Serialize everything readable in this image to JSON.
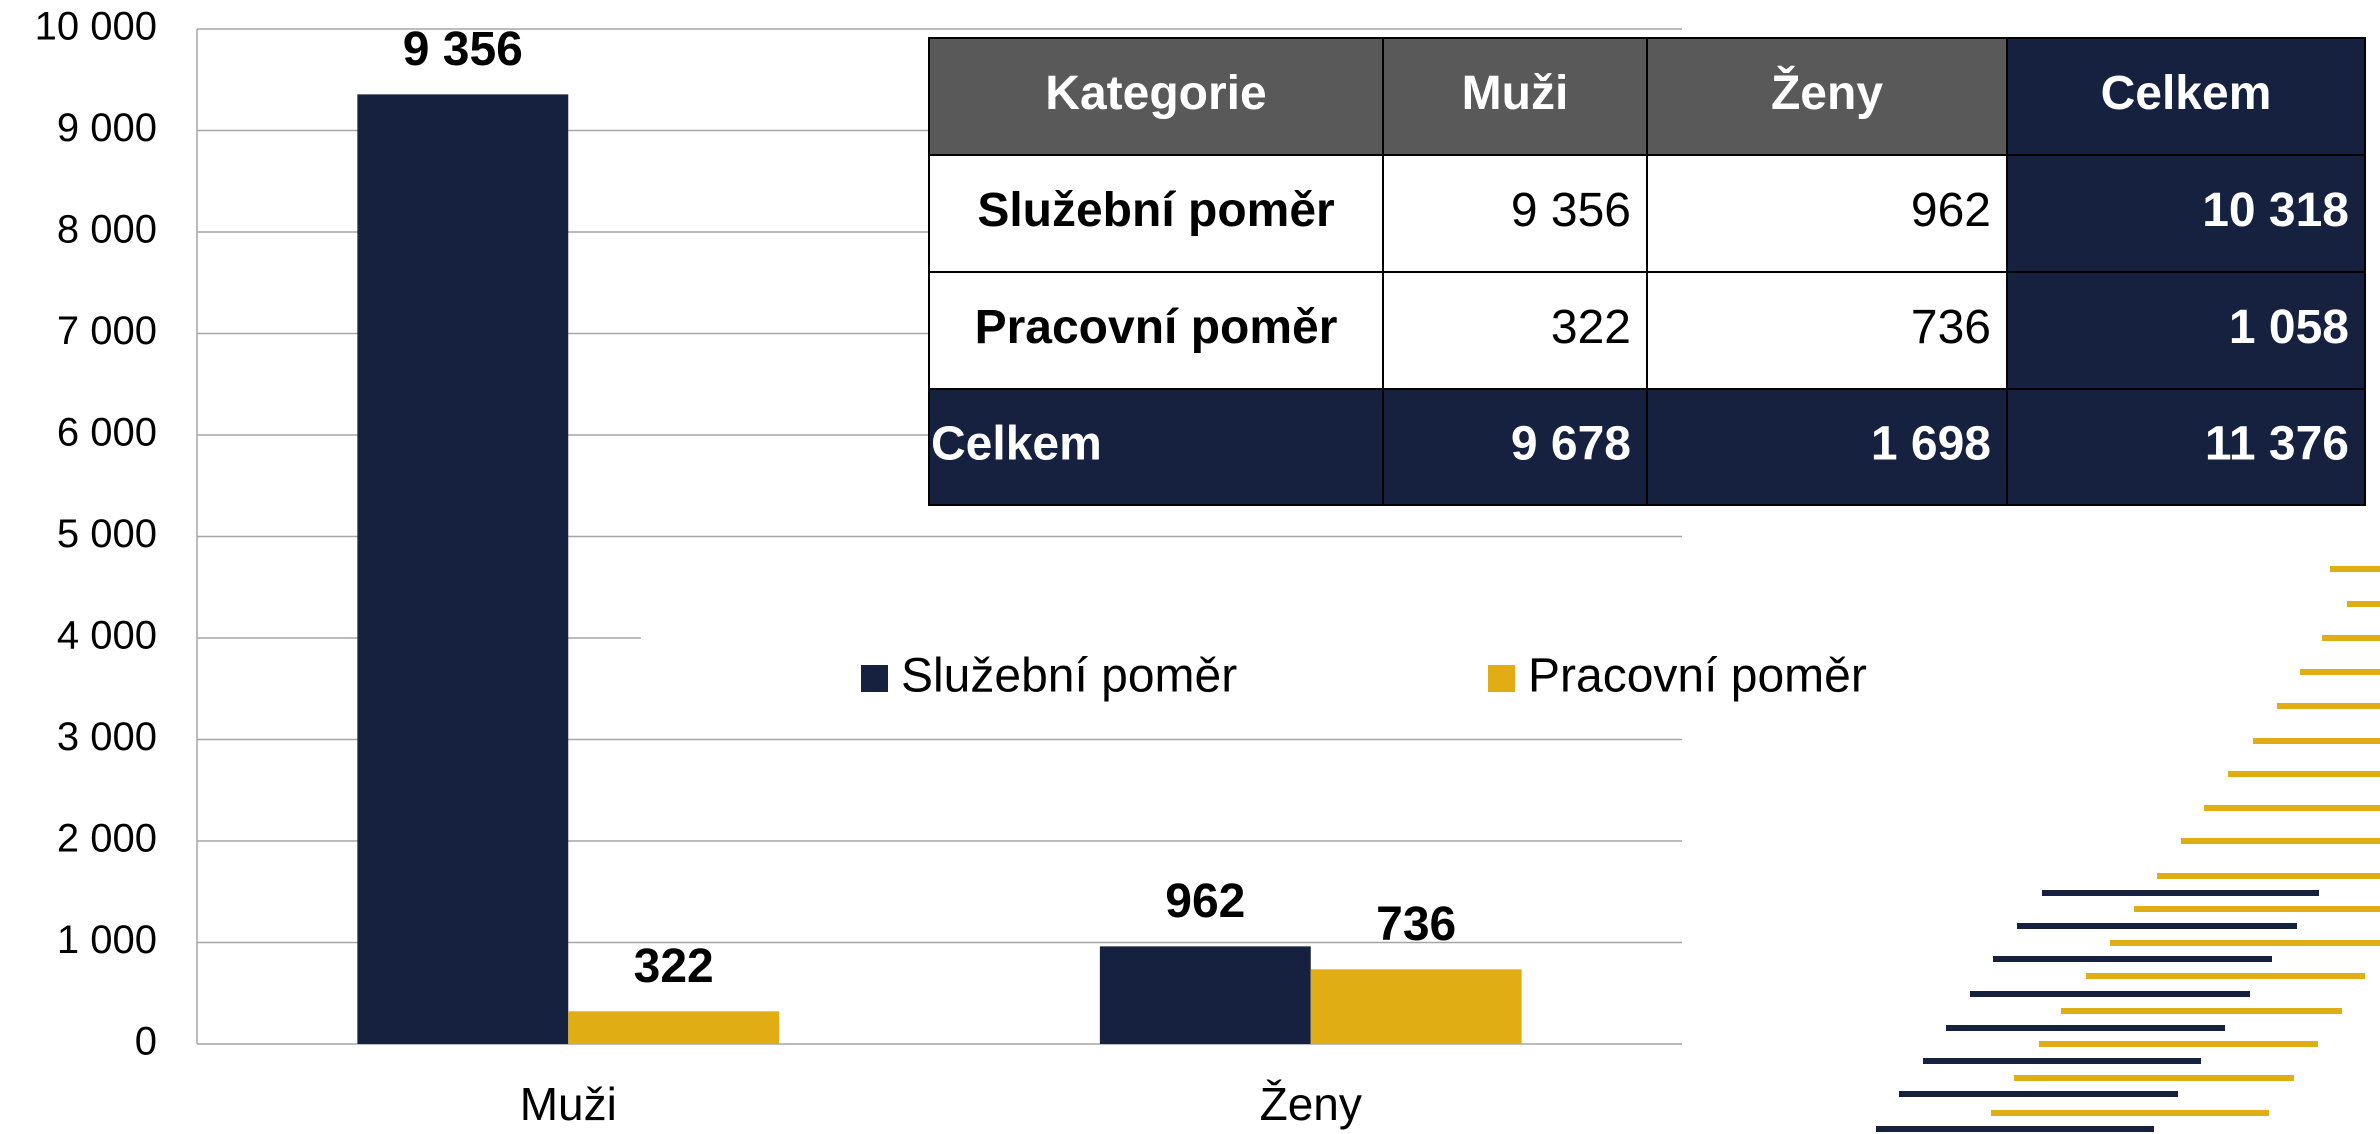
{
  "chart_data": {
    "type": "bar",
    "categories": [
      "Muži",
      "Ženy"
    ],
    "series": [
      {
        "name": "Služební poměr",
        "color": "#16213f",
        "values": [
          9356,
          962
        ],
        "value_labels": [
          "9 356",
          "962"
        ]
      },
      {
        "name": "Pracovní poměr",
        "color": "#e0ad14",
        "values": [
          322,
          736
        ],
        "value_labels": [
          "322",
          "736"
        ]
      }
    ],
    "ylim": [
      0,
      10000
    ],
    "yticks": [
      0,
      {
        "value": 1000,
        "label": "1 000"
      },
      {
        "value": 2000,
        "label": "2 000"
      },
      {
        "value": 3000,
        "label": "3 000"
      },
      {
        "value": 4000,
        "label": "4 000"
      },
      {
        "value": 5000,
        "label": "5 000"
      },
      {
        "value": 6000,
        "label": "6 000"
      },
      {
        "value": 7000,
        "label": "7 000"
      },
      {
        "value": 8000,
        "label": "8 000"
      },
      {
        "value": 9000,
        "label": "9 000"
      },
      {
        "value": 10000,
        "label": "10 000"
      }
    ],
    "grid": true
  },
  "table": {
    "header": [
      "Kategorie",
      "Muži",
      "Ženy",
      "Celkem"
    ],
    "rows": [
      [
        "Služební poměr",
        "9 356",
        "962",
        "10 318"
      ],
      [
        "Pracovní poměr",
        "322",
        "736",
        "1 058"
      ],
      [
        "Celkem",
        "9 678",
        "1 698",
        "11 376"
      ]
    ]
  }
}
